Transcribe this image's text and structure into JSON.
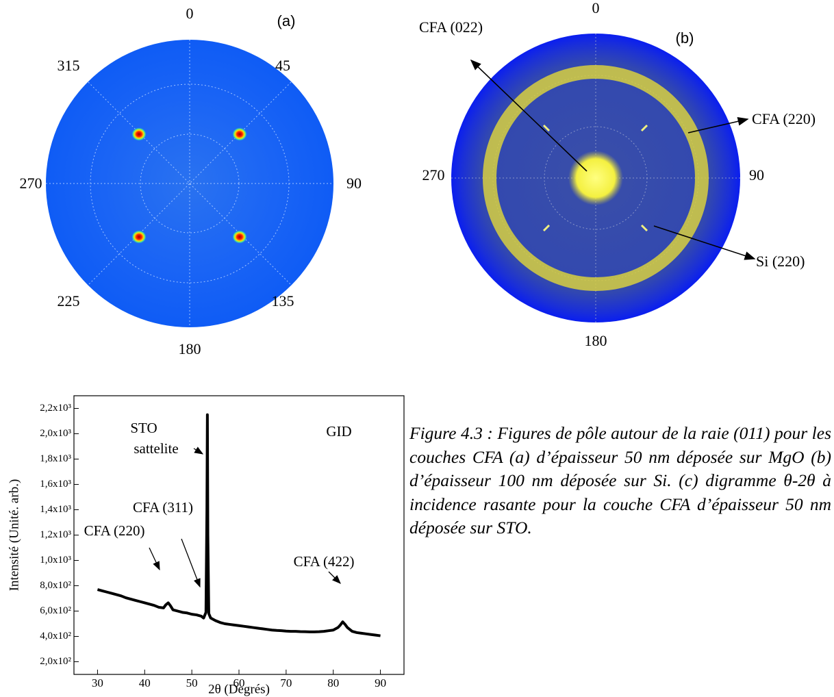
{
  "pole_figures": [
    {
      "panel": "(a)",
      "angle_labels": [
        "0",
        "45",
        "90",
        "135",
        "180",
        "225",
        "270",
        "315"
      ]
    },
    {
      "panel": "(b)",
      "angle_labels": [
        "0",
        "90",
        "180",
        "270"
      ],
      "annotations": [
        "CFA (022)",
        "CFA (220)",
        "Si (220)"
      ]
    }
  ],
  "chart_data": {
    "type": "line",
    "x_label": "2θ (Degrés)",
    "y_label": "Intensité (Unité. arb.)",
    "annotations": [
      "STO",
      "sattelite",
      "GID",
      "CFA (220)",
      "CFA (311)",
      "CFA (422)"
    ],
    "xlim": [
      25,
      95
    ],
    "xticks": [
      30,
      40,
      50,
      60,
      70,
      80,
      90
    ],
    "ylim": [
      100,
      2300
    ],
    "yticks": [
      {
        "value": 200,
        "label": "2,0x10²"
      },
      {
        "value": 400,
        "label": "4,0x10²"
      },
      {
        "value": 600,
        "label": "6,0x10²"
      },
      {
        "value": 800,
        "label": "8,0x10²"
      },
      {
        "value": 1000,
        "label": "1,0x10³"
      },
      {
        "value": 1200,
        "label": "1,2x10³"
      },
      {
        "value": 1400,
        "label": "1,4x10³"
      },
      {
        "value": 1600,
        "label": "1,6x10³"
      },
      {
        "value": 1800,
        "label": "1,8x10³"
      },
      {
        "value": 2000,
        "label": "2,0x10³"
      },
      {
        "value": 2200,
        "label": "2,2x10³"
      }
    ],
    "series": [
      {
        "color": "#000000",
        "x": [
          30,
          31,
          32,
          33,
          34,
          35,
          36,
          37,
          38,
          39,
          40,
          41,
          42,
          43,
          44,
          44.5,
          45,
          45.5,
          46,
          47,
          48,
          49,
          50,
          51,
          52,
          52.5,
          53,
          53.2,
          53.3,
          53.4,
          53.6,
          54,
          55,
          56,
          57,
          58,
          59,
          60,
          61,
          62,
          63,
          64,
          65,
          66,
          67,
          68,
          69,
          70,
          71,
          72,
          73,
          74,
          75,
          76,
          77,
          78,
          79,
          80,
          81,
          81.5,
          82,
          82.5,
          83,
          84,
          85,
          86,
          87,
          88,
          89,
          90
        ],
        "values": [
          770,
          760,
          750,
          740,
          730,
          720,
          705,
          695,
          685,
          675,
          665,
          655,
          645,
          630,
          625,
          650,
          665,
          640,
          610,
          600,
          590,
          585,
          575,
          570,
          560,
          545,
          590,
          1400,
          2150,
          1200,
          580,
          545,
          525,
          510,
          500,
          495,
          490,
          485,
          480,
          475,
          470,
          465,
          460,
          455,
          450,
          447,
          445,
          442,
          440,
          440,
          438,
          437,
          436,
          436,
          437,
          440,
          445,
          450,
          470,
          490,
          515,
          495,
          470,
          440,
          430,
          425,
          420,
          415,
          410,
          405
        ]
      }
    ]
  },
  "caption": "Figure 4.3 : Figures de pôle autour de la raie (011) pour les couches CFA (a) d’épaisseur 50 nm déposée sur MgO (b) d’épaisseur 100 nm déposée sur Si. (c) digramme θ-2θ à incidence rasante pour la couche CFA d’épaisseur 50 nm déposée sur STO."
}
